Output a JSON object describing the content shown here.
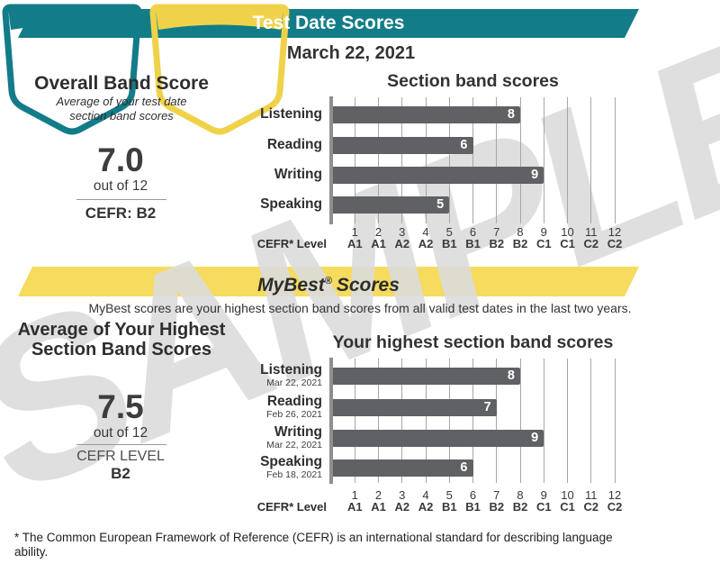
{
  "colors": {
    "teal": "#127c88",
    "banner_yellow": "#f6db5e",
    "badge_yellow": "#f0d24a",
    "bar": "#5f6164",
    "watermark": "#dcdcdc"
  },
  "header_banner": {
    "label": "Test Date Scores"
  },
  "test_date": {
    "date": "March 22, 2021",
    "overall_badge": {
      "title": "Overall Band Score",
      "subtitle_line1": "Average of your test date",
      "subtitle_line2": "section band scores",
      "score": "7.0",
      "out_of": "out of 12",
      "cefr": "CEFR: B2"
    }
  },
  "mybest_banner": {
    "brand": "MyBest",
    "reg": "®",
    "rest": "Scores"
  },
  "mybest": {
    "description": "MyBest scores are your highest section band scores from all valid test dates in the last two years.",
    "average_badge": {
      "title_line1": "Average of Your Highest",
      "title_line2": "Section Band Scores",
      "score": "7.5",
      "out_of": "out of 12",
      "cefr_label": "CEFR LEVEL",
      "cefr_value": "B2"
    }
  },
  "chart_data": [
    {
      "type": "bar",
      "orientation": "horizontal",
      "title": "Section band scores",
      "categories": [
        "Listening",
        "Reading",
        "Writing",
        "Speaking"
      ],
      "values": [
        8,
        6,
        9,
        5
      ],
      "xlim": [
        0,
        12
      ],
      "x_ticks": [
        1,
        2,
        3,
        4,
        5,
        6,
        7,
        8,
        9,
        10,
        11,
        12
      ],
      "x_tick_cefr": [
        "A1",
        "A1",
        "A2",
        "A2",
        "B1",
        "B1",
        "B2",
        "B2",
        "C1",
        "C1",
        "C2",
        "C2"
      ],
      "axis_label": "CEFR* Level",
      "grid": true,
      "bar_color": "#5f6164",
      "value_label_color": "#ffffff"
    },
    {
      "type": "bar",
      "orientation": "horizontal",
      "title": "Your highest section band scores",
      "categories": [
        "Listening",
        "Reading",
        "Writing",
        "Speaking"
      ],
      "category_dates": [
        "Mar 22, 2021",
        "Feb 26, 2021",
        "Mar 22, 2021",
        "Feb 18, 2021"
      ],
      "values": [
        8,
        7,
        9,
        6
      ],
      "xlim": [
        0,
        12
      ],
      "x_ticks": [
        1,
        2,
        3,
        4,
        5,
        6,
        7,
        8,
        9,
        10,
        11,
        12
      ],
      "x_tick_cefr": [
        "A1",
        "A1",
        "A2",
        "A2",
        "B1",
        "B1",
        "B2",
        "B2",
        "C1",
        "C1",
        "C2",
        "C2"
      ],
      "axis_label": "CEFR* Level",
      "grid": true,
      "bar_color": "#5f6164",
      "value_label_color": "#ffffff"
    }
  ],
  "footnote": "* The Common European Framework of Reference (CEFR) is an international standard for describing language ability.",
  "watermark": "SAMPLE"
}
